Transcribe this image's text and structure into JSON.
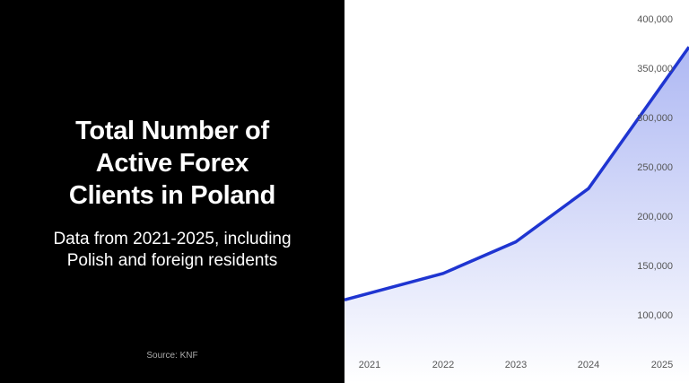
{
  "title": "Total Number of Active Forex Clients in Poland",
  "subtitle": "Data from 2021-2025, including Polish and foreign residents",
  "source": "Source: KNF",
  "chart_data": {
    "type": "area",
    "categories": [
      "2021",
      "2022",
      "2023",
      "2024",
      "2025"
    ],
    "values": [
      122000,
      142000,
      174000,
      228000,
      333000
    ],
    "y_ticks": [
      "100,000",
      "150,000",
      "200,000",
      "250,000",
      "300,000",
      "350,000",
      "400,000"
    ],
    "y_tick_values": [
      100000,
      150000,
      200000,
      250000,
      300000,
      350000,
      400000
    ],
    "ylim": [
      50000,
      400000
    ],
    "grid": false,
    "line_color": "#1f35d1",
    "fill_color": "#b7c0f5"
  }
}
